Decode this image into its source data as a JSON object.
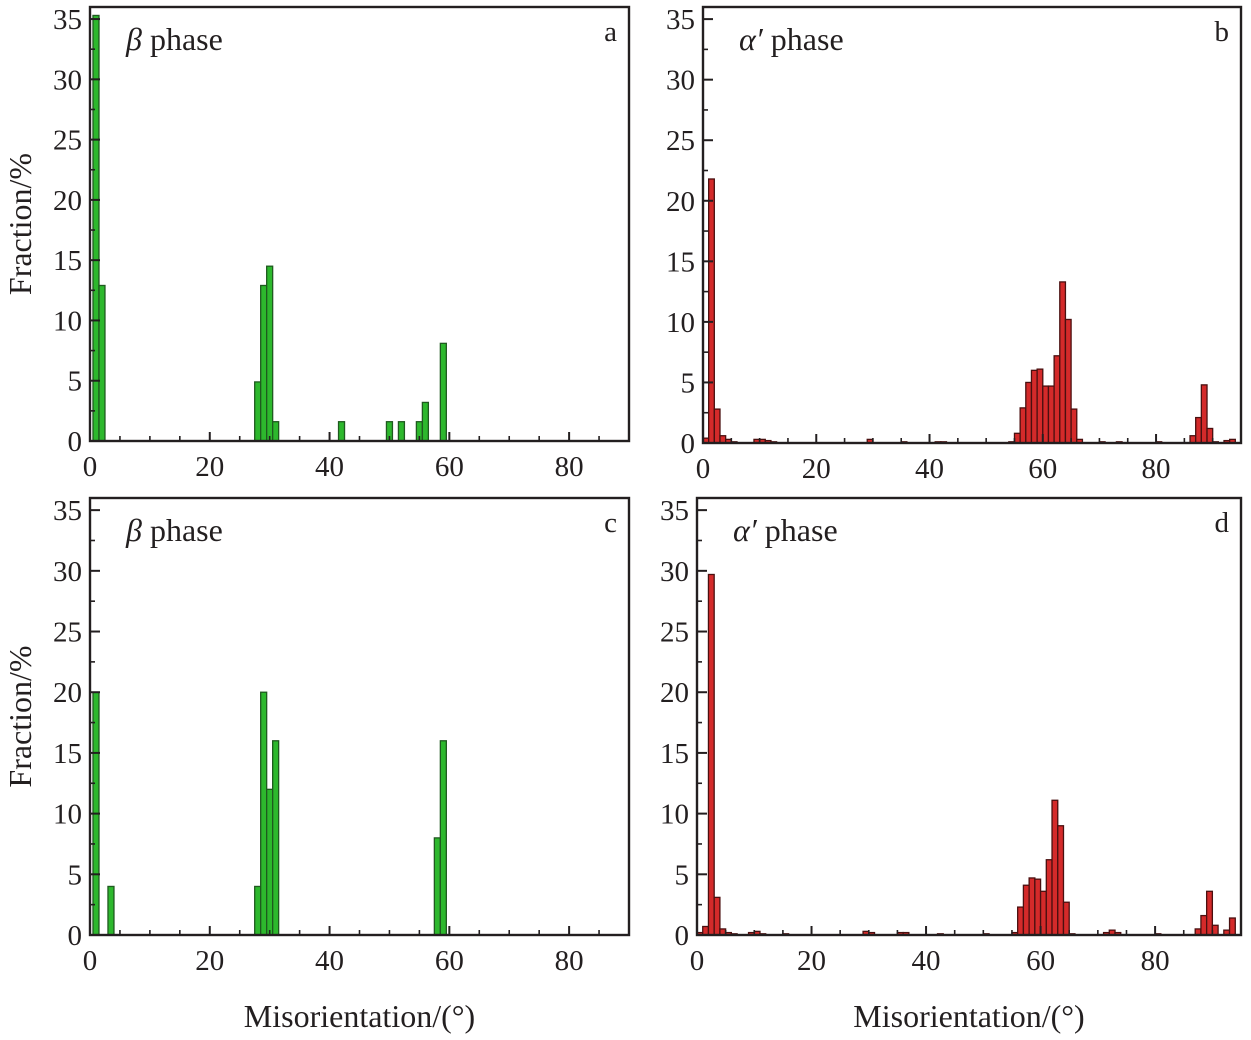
{
  "chart_data": [
    {
      "panel": "a",
      "type": "bar",
      "title_symbol": "β",
      "title_text": " phase",
      "bar_color": "#2db82d",
      "bar_edge": "#1f5a1f",
      "bin_width": 1,
      "xlim": [
        0,
        90
      ],
      "ylim": [
        0,
        36
      ],
      "xticks": [
        0,
        20,
        40,
        60,
        80
      ],
      "yticks": [
        0,
        5,
        10,
        15,
        20,
        25,
        30,
        35
      ],
      "ylabel": "Fraction/%",
      "xlabel": "",
      "bars": [
        {
          "x": 1,
          "y": 35.3
        },
        {
          "x": 2,
          "y": 12.9
        },
        {
          "x": 28,
          "y": 4.9
        },
        {
          "x": 29,
          "y": 12.9
        },
        {
          "x": 30,
          "y": 14.5
        },
        {
          "x": 31,
          "y": 1.6
        },
        {
          "x": 42,
          "y": 1.6
        },
        {
          "x": 50,
          "y": 1.6
        },
        {
          "x": 52,
          "y": 1.6
        },
        {
          "x": 55,
          "y": 1.6
        },
        {
          "x": 56,
          "y": 3.2
        },
        {
          "x": 59,
          "y": 8.1
        }
      ]
    },
    {
      "panel": "b",
      "type": "bar",
      "title_symbol": "α′",
      "title_text": " phase",
      "bar_color": "#d42a2a",
      "bar_edge": "#4a1010",
      "bin_width": 1,
      "xlim": [
        0,
        95
      ],
      "ylim": [
        0,
        36
      ],
      "xticks": [
        0,
        20,
        40,
        60,
        80
      ],
      "yticks": [
        0,
        5,
        10,
        15,
        20,
        25,
        30,
        35
      ],
      "ylabel": "",
      "xlabel": "",
      "bars": [
        {
          "x": 0.5,
          "y": 0.4
        },
        {
          "x": 1.5,
          "y": 21.8
        },
        {
          "x": 2.5,
          "y": 2.8
        },
        {
          "x": 3.5,
          "y": 0.6
        },
        {
          "x": 4.5,
          "y": 0.3
        },
        {
          "x": 5.5,
          "y": 0.1
        },
        {
          "x": 9.5,
          "y": 0.3
        },
        {
          "x": 10.5,
          "y": 0.3
        },
        {
          "x": 11.5,
          "y": 0.2
        },
        {
          "x": 12.5,
          "y": 0.1
        },
        {
          "x": 29.5,
          "y": 0.3
        },
        {
          "x": 35.5,
          "y": 0.1
        },
        {
          "x": 41.5,
          "y": 0.1
        },
        {
          "x": 42.5,
          "y": 0.1
        },
        {
          "x": 54.5,
          "y": 0.1
        },
        {
          "x": 55.5,
          "y": 0.8
        },
        {
          "x": 56.5,
          "y": 2.9
        },
        {
          "x": 57.5,
          "y": 5.0
        },
        {
          "x": 58.5,
          "y": 6.0
        },
        {
          "x": 59.5,
          "y": 6.1
        },
        {
          "x": 60.5,
          "y": 4.7
        },
        {
          "x": 61.5,
          "y": 4.7
        },
        {
          "x": 62.5,
          "y": 7.2
        },
        {
          "x": 63.5,
          "y": 13.3
        },
        {
          "x": 64.5,
          "y": 10.2
        },
        {
          "x": 65.5,
          "y": 2.8
        },
        {
          "x": 66.5,
          "y": 0.3
        },
        {
          "x": 70.5,
          "y": 0.1
        },
        {
          "x": 73.5,
          "y": 0.1
        },
        {
          "x": 80.5,
          "y": 0.1
        },
        {
          "x": 86.5,
          "y": 0.6
        },
        {
          "x": 87.5,
          "y": 2.1
        },
        {
          "x": 88.5,
          "y": 4.8
        },
        {
          "x": 89.5,
          "y": 1.2
        },
        {
          "x": 90.5,
          "y": 0.1
        },
        {
          "x": 92.5,
          "y": 0.2
        },
        {
          "x": 93.5,
          "y": 0.3
        }
      ]
    },
    {
      "panel": "c",
      "type": "bar",
      "title_symbol": "β",
      "title_text": " phase",
      "bar_color": "#2db82d",
      "bar_edge": "#1f5a1f",
      "bin_width": 1,
      "xlim": [
        0,
        90
      ],
      "ylim": [
        0,
        36
      ],
      "xticks": [
        0,
        20,
        40,
        60,
        80
      ],
      "yticks": [
        0,
        5,
        10,
        15,
        20,
        25,
        30,
        35
      ],
      "ylabel": "Fraction/%",
      "xlabel": "Misorientation/(°)",
      "bars": [
        {
          "x": 1,
          "y": 20
        },
        {
          "x": 3.5,
          "y": 4
        },
        {
          "x": 28,
          "y": 4
        },
        {
          "x": 29,
          "y": 20
        },
        {
          "x": 30,
          "y": 12
        },
        {
          "x": 31,
          "y": 16
        },
        {
          "x": 58,
          "y": 8
        },
        {
          "x": 59,
          "y": 16
        }
      ]
    },
    {
      "panel": "d",
      "type": "bar",
      "title_symbol": "α′",
      "title_text": " phase",
      "bar_color": "#d42a2a",
      "bar_edge": "#4a1010",
      "bin_width": 1,
      "xlim": [
        0,
        95
      ],
      "ylim": [
        0,
        36
      ],
      "xticks": [
        0,
        20,
        40,
        60,
        80
      ],
      "yticks": [
        0,
        5,
        10,
        15,
        20,
        25,
        30,
        35
      ],
      "ylabel": "",
      "xlabel": "Misorientation/(°)",
      "bars": [
        {
          "x": 0.5,
          "y": 0.2
        },
        {
          "x": 1.5,
          "y": 0.7
        },
        {
          "x": 2.5,
          "y": 29.7
        },
        {
          "x": 3.5,
          "y": 3.1
        },
        {
          "x": 4.5,
          "y": 0.5
        },
        {
          "x": 5.5,
          "y": 0.2
        },
        {
          "x": 6.5,
          "y": 0.1
        },
        {
          "x": 9.5,
          "y": 0.2
        },
        {
          "x": 10.5,
          "y": 0.3
        },
        {
          "x": 11.5,
          "y": 0.1
        },
        {
          "x": 15.5,
          "y": 0.1
        },
        {
          "x": 29.5,
          "y": 0.3
        },
        {
          "x": 30.5,
          "y": 0.2
        },
        {
          "x": 35.5,
          "y": 0.2
        },
        {
          "x": 36.5,
          "y": 0.2
        },
        {
          "x": 42.5,
          "y": 0.1
        },
        {
          "x": 50.5,
          "y": 0.1
        },
        {
          "x": 55.5,
          "y": 0.2
        },
        {
          "x": 56.5,
          "y": 2.3
        },
        {
          "x": 57.5,
          "y": 4.1
        },
        {
          "x": 58.5,
          "y": 4.7
        },
        {
          "x": 59.5,
          "y": 4.6
        },
        {
          "x": 60.5,
          "y": 3.6
        },
        {
          "x": 61.5,
          "y": 6.2
        },
        {
          "x": 62.5,
          "y": 11.1
        },
        {
          "x": 63.5,
          "y": 9.0
        },
        {
          "x": 64.5,
          "y": 2.7
        },
        {
          "x": 65.5,
          "y": 0.1
        },
        {
          "x": 71.5,
          "y": 0.2
        },
        {
          "x": 72.5,
          "y": 0.4
        },
        {
          "x": 73.5,
          "y": 0.2
        },
        {
          "x": 80.5,
          "y": 0.1
        },
        {
          "x": 87.5,
          "y": 0.5
        },
        {
          "x": 88.5,
          "y": 1.6
        },
        {
          "x": 89.5,
          "y": 3.6
        },
        {
          "x": 90.5,
          "y": 0.8
        },
        {
          "x": 92.5,
          "y": 0.4
        },
        {
          "x": 93.5,
          "y": 1.4
        }
      ]
    }
  ]
}
